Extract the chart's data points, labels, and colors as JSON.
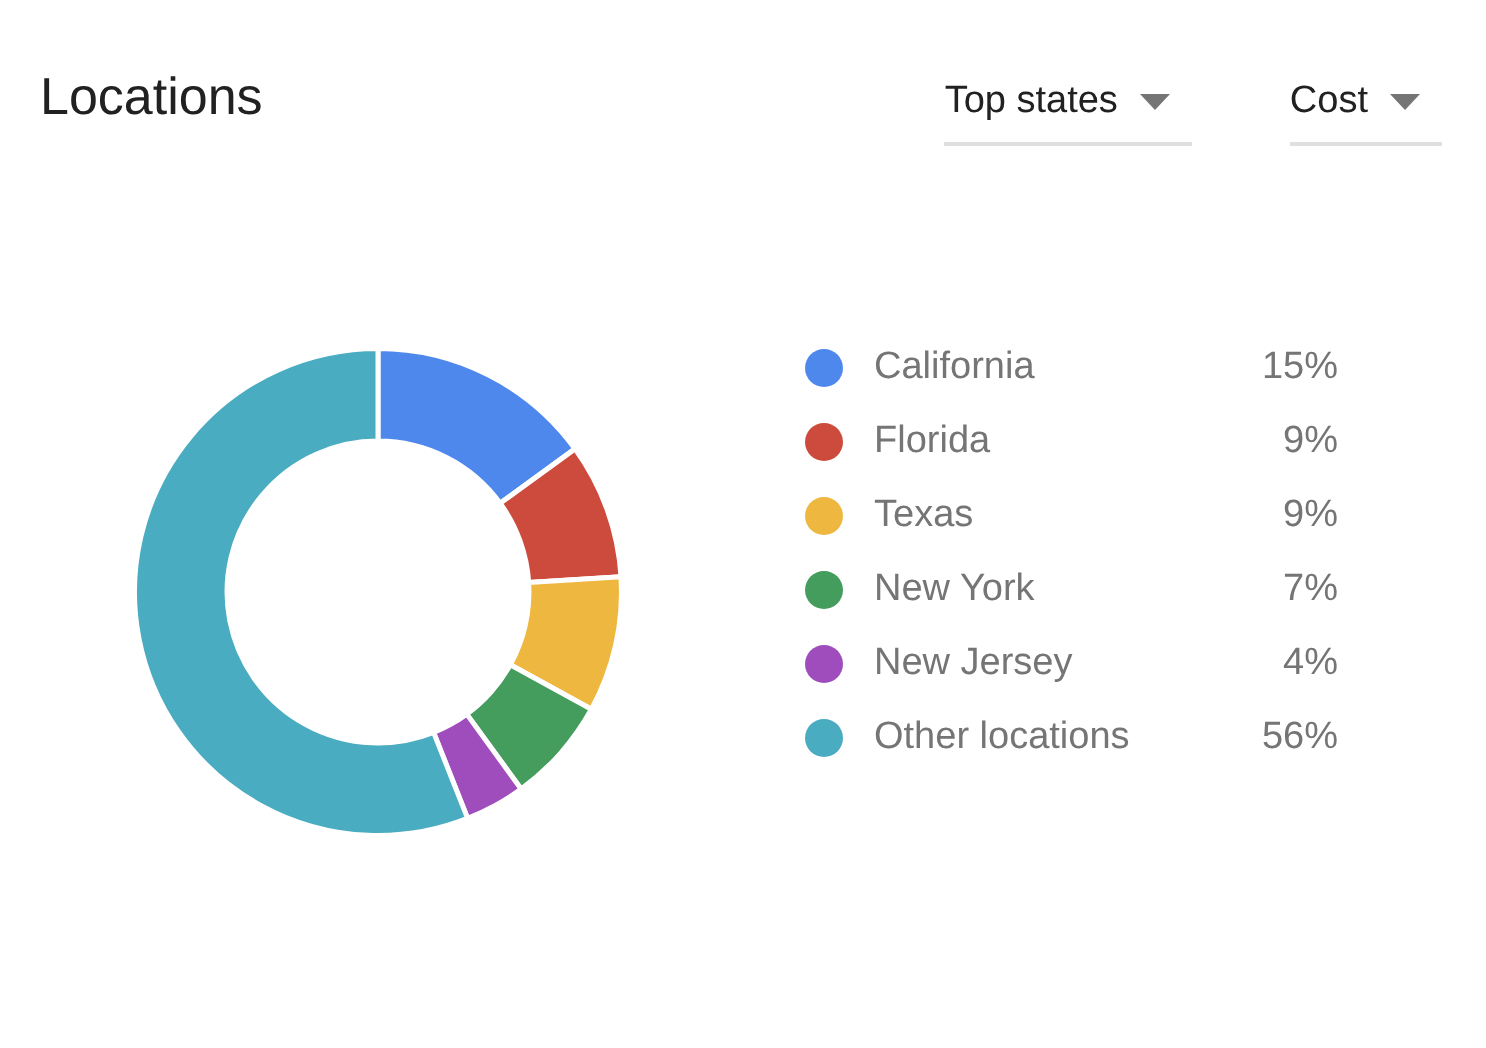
{
  "chart_data": {
    "type": "donut",
    "title": "Locations",
    "categories": [
      "California",
      "Florida",
      "Texas",
      "New York",
      "New Jersey",
      "Other locations"
    ],
    "values": [
      15,
      9,
      9,
      7,
      4,
      56
    ],
    "value_labels": [
      "15%",
      "9%",
      "9%",
      "7%",
      "4%",
      "56%"
    ],
    "colors": [
      "#4f88ed",
      "#cc4b3c",
      "#eeb73f",
      "#449c5d",
      "#9f4dbc",
      "#4aacc1"
    ],
    "legend": "right",
    "annotations": [
      "Top states",
      "Cost"
    ]
  }
}
